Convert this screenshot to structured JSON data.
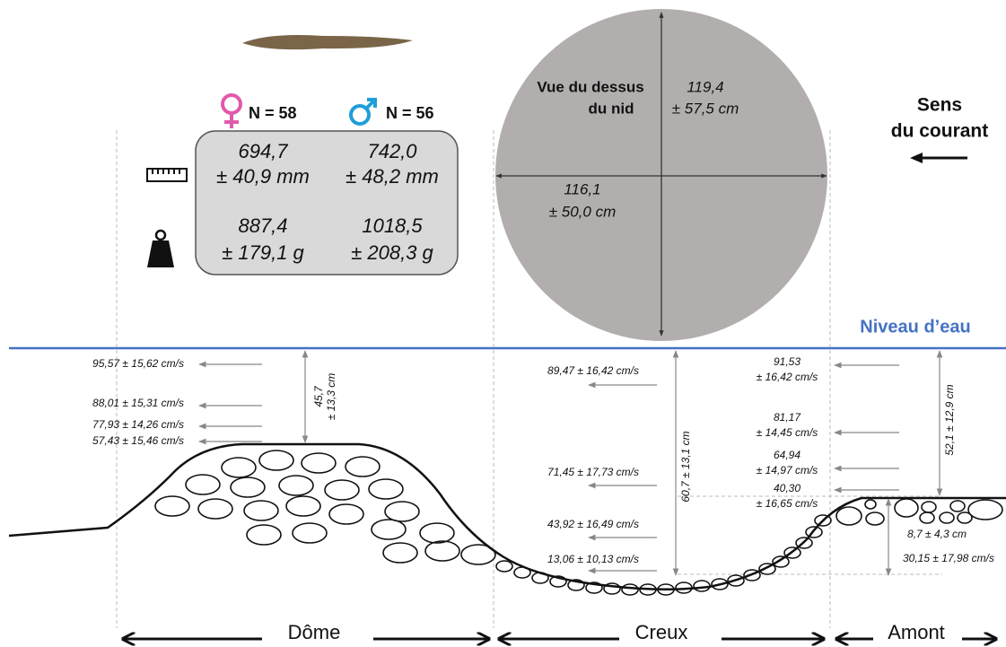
{
  "sexes": {
    "female": "N = 58",
    "male": "N = 56"
  },
  "table": {
    "rows": [
      [
        "694,7",
        "± 40,9 mm",
        "742,0",
        "± 48,2 mm"
      ],
      [
        "887,4",
        "± 179,1 g",
        "1018,5",
        "± 208,3 g"
      ]
    ]
  },
  "top_view": {
    "title": [
      "Vue du dessus",
      "du nid"
    ],
    "length": [
      "119,4",
      "± 57,5 cm"
    ],
    "width": [
      "116,1",
      "± 50,0 cm"
    ]
  },
  "current": [
    "Sens",
    "du courant"
  ],
  "water_level": "Niveau d’eau",
  "velocities": {
    "dome": [
      "95,57 ± 15,62 cm/s",
      "88,01 ± 15,31 cm/s",
      "77,93 ± 14,26 cm/s",
      "57,43 ± 15,46 cm/s"
    ],
    "creux": [
      "89,47 ± 16,42 cm/s",
      "71,45 ± 17,73 cm/s",
      "43,92 ± 16,49 cm/s",
      "13,06 ± 10,13 cm/s"
    ],
    "amont": [
      [
        "91,53",
        "± 16,42 cm/s"
      ],
      [
        "81,17",
        "± 14,45 cm/s"
      ],
      [
        "64,94",
        "± 14,97 cm/s"
      ],
      [
        "40,30",
        "± 16,65 cm/s"
      ]
    ]
  },
  "depths": {
    "dome": [
      "45,7",
      "± 13,3 cm"
    ],
    "creux": "60,7 ± 13,1 cm",
    "amont": "52,1 ± 12,9 cm",
    "step": "8,7 ± 4,3 cm",
    "step_velocity": "30,15 ± 17,98 cm/s"
  },
  "sections": [
    "Dôme",
    "Creux",
    "Amont"
  ]
}
